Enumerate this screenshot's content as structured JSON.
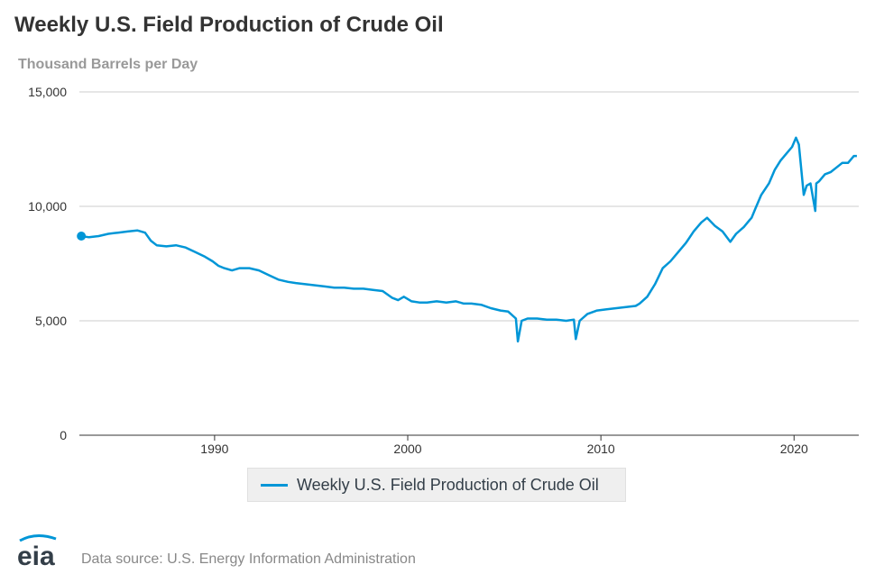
{
  "title": "Weekly U.S. Field Production of Crude Oil",
  "subtitle": "Thousand Barrels per Day",
  "source": "Data source: U.S. Energy Information Administration",
  "logo_text": "eia",
  "colors": {
    "series": "#0096d7",
    "grid": "#cccccc",
    "axis": "#333333",
    "title": "#333333",
    "subtitle": "#999999"
  },
  "chart_data": {
    "type": "line",
    "title": "Weekly U.S. Field Production of Crude Oil",
    "ylabel": "Thousand Barrels per Day",
    "xlabel": "",
    "xlim": [
      1983.0,
      2023.35
    ],
    "ylim": [
      0,
      15000
    ],
    "x_ticks": [
      1990,
      2000,
      2010,
      2020
    ],
    "x_tick_labels": [
      "1990",
      "2000",
      "2010",
      "2020"
    ],
    "y_ticks": [
      0,
      5000,
      10000,
      15000
    ],
    "y_tick_labels": [
      "0",
      "5,000",
      "10,000",
      "15,000"
    ],
    "grid": true,
    "legend_position": "bottom-center",
    "series": [
      {
        "name": "Weekly U.S. Field Production of Crude Oil",
        "color": "#0096d7",
        "x": [
          1983.1,
          1983.5,
          1984.0,
          1984.5,
          1985.0,
          1985.5,
          1986.0,
          1986.4,
          1986.7,
          1987.0,
          1987.5,
          1988.0,
          1988.5,
          1989.0,
          1989.5,
          1989.9,
          1990.2,
          1990.5,
          1990.9,
          1991.3,
          1991.8,
          1992.3,
          1992.8,
          1993.3,
          1993.8,
          1994.2,
          1994.7,
          1995.2,
          1995.7,
          1996.2,
          1996.7,
          1997.2,
          1997.7,
          1998.2,
          1998.7,
          1999.2,
          1999.5,
          1999.8,
          2000.2,
          2000.6,
          2001.0,
          2001.5,
          2002.0,
          2002.5,
          2002.9,
          2003.3,
          2003.8,
          2004.3,
          2004.8,
          2005.2,
          2005.6,
          2005.7,
          2005.9,
          2006.2,
          2006.7,
          2007.2,
          2007.7,
          2008.2,
          2008.6,
          2008.7,
          2008.9,
          2009.3,
          2009.8,
          2010.3,
          2010.8,
          2011.3,
          2011.8,
          2012.0,
          2012.4,
          2012.8,
          2013.2,
          2013.6,
          2014.0,
          2014.4,
          2014.8,
          2015.2,
          2015.5,
          2015.9,
          2016.3,
          2016.7,
          2017.0,
          2017.4,
          2017.7,
          2017.8,
          2018.0,
          2018.3,
          2018.7,
          2019.0,
          2019.3,
          2019.6,
          2019.9,
          2020.1,
          2020.25,
          2020.4,
          2020.5,
          2020.65,
          2020.85,
          2021.1,
          2021.15,
          2021.3,
          2021.6,
          2021.9,
          2022.2,
          2022.5,
          2022.8,
          2023.1,
          2023.25
        ],
        "values": [
          8700,
          8650,
          8700,
          8800,
          8850,
          8900,
          8950,
          8850,
          8500,
          8300,
          8250,
          8300,
          8200,
          8000,
          7800,
          7600,
          7400,
          7300,
          7200,
          7300,
          7300,
          7200,
          7000,
          6800,
          6700,
          6650,
          6600,
          6550,
          6500,
          6450,
          6450,
          6400,
          6400,
          6350,
          6300,
          6000,
          5900,
          6050,
          5850,
          5800,
          5800,
          5850,
          5800,
          5850,
          5750,
          5750,
          5700,
          5550,
          5450,
          5400,
          5100,
          4100,
          5000,
          5100,
          5100,
          5050,
          5050,
          5000,
          5050,
          4200,
          5000,
          5300,
          5450,
          5500,
          5550,
          5600,
          5650,
          5750,
          6050,
          6600,
          7300,
          7600,
          8000,
          8400,
          8900,
          9300,
          9500,
          9150,
          8900,
          8450,
          8800,
          9100,
          9400,
          9500,
          9900,
          10500,
          11000,
          11600,
          12000,
          12300,
          12600,
          13000,
          12700,
          11400,
          10500,
          10900,
          11000,
          9800,
          11000,
          11100,
          11400,
          11500,
          11700,
          11900,
          11900,
          12200,
          12200
        ]
      }
    ]
  }
}
